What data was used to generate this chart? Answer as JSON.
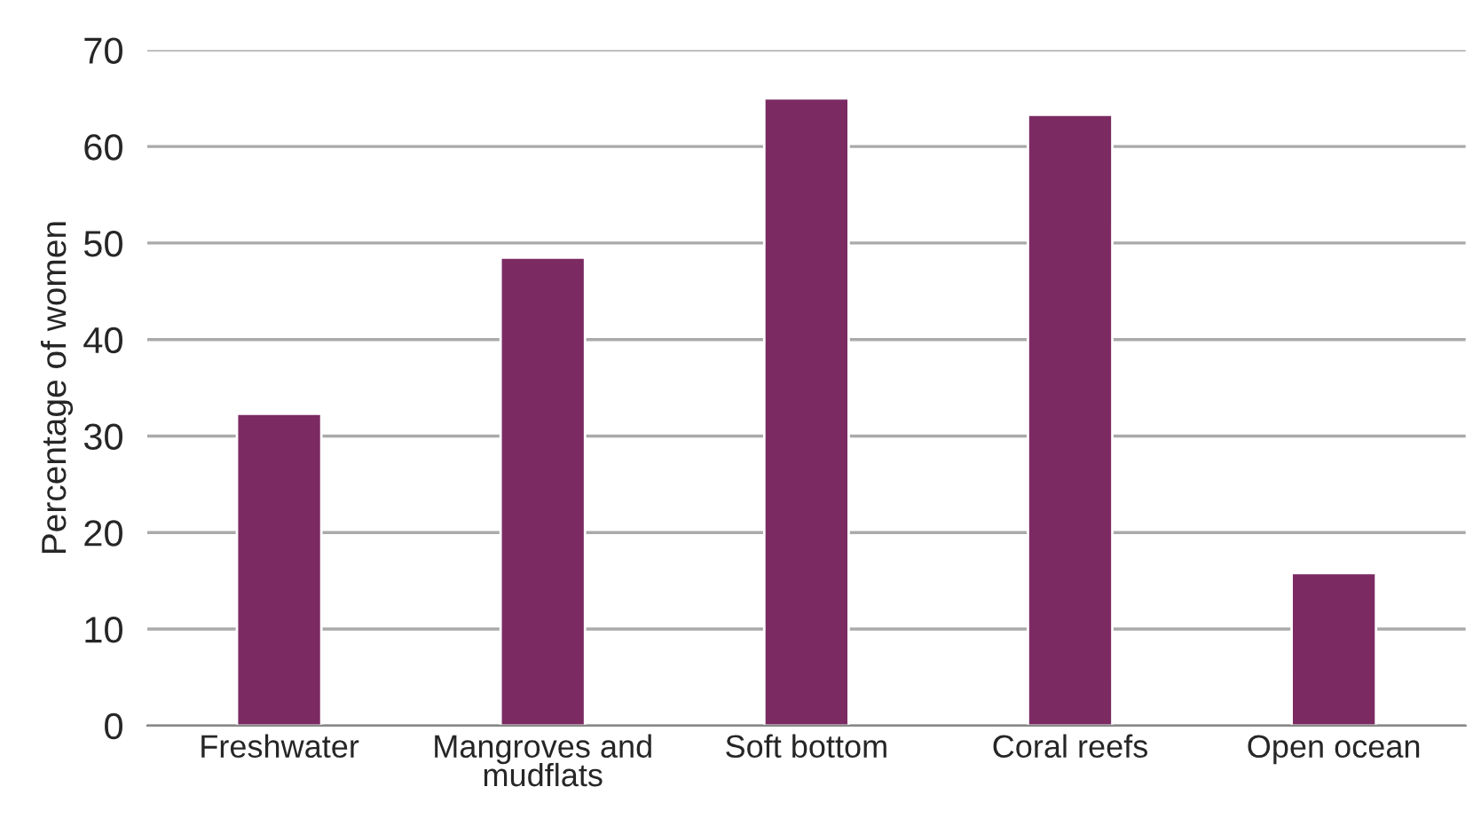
{
  "chart_data": {
    "type": "bar",
    "ylabel": "Percentage of women",
    "categories": [
      "Freshwater",
      "Mangroves and\nmudflats",
      "Soft bottom",
      "Coral reefs",
      "Open ocean"
    ],
    "values": [
      32.3,
      48.5,
      65,
      63.3,
      15.8
    ],
    "color": "#7b2a62",
    "ylim": [
      0,
      70
    ],
    "yticks": [
      0,
      10,
      20,
      30,
      40,
      50,
      60,
      70
    ],
    "grid": "y",
    "legend": false
  }
}
